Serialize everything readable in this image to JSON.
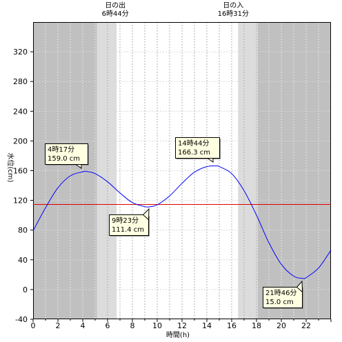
{
  "chart_data": {
    "type": "line",
    "xlabel": "時間(h)",
    "ylabel": "水位(cm)",
    "xlim": [
      0,
      24
    ],
    "ylim": [
      -40,
      360
    ],
    "x_ticks": [
      0,
      2,
      4,
      6,
      8,
      10,
      12,
      14,
      16,
      18,
      20,
      22
    ],
    "y_ticks": [
      -40,
      0,
      40,
      80,
      120,
      160,
      200,
      240,
      280,
      320
    ],
    "reference_line": {
      "value": 115,
      "color": "#dd0000"
    },
    "sunrise": {
      "label": "日の出",
      "time": "6時44分",
      "hour": 6.733
    },
    "sunset": {
      "label": "日の入",
      "time": "16時31分",
      "hour": 16.517
    },
    "twilight": {
      "morning_start": 5.15,
      "evening_end": 18.1
    },
    "series": [
      {
        "color": "#0000ff",
        "x": [
          0,
          1,
          2,
          3,
          4,
          4.283,
          5,
          6,
          7,
          8,
          9,
          9.383,
          10,
          11,
          12,
          13,
          14,
          14.733,
          15,
          16,
          17,
          18,
          19,
          20,
          21,
          21.767,
          22,
          23,
          24
        ],
        "y": [
          79,
          110,
          137,
          153,
          158.5,
          159.0,
          156,
          145,
          130,
          117,
          111.6,
          111.4,
          114,
          126,
          143,
          158,
          165.5,
          166.3,
          165.5,
          156,
          133,
          100,
          63,
          34,
          18,
          15.0,
          16,
          29,
          53
        ]
      }
    ],
    "annotations": [
      {
        "time": "4時17分",
        "value": "159.0 cm",
        "x": 4.283,
        "y": 159.0
      },
      {
        "time": "9時23分",
        "value": "111.4 cm",
        "x": 9.383,
        "y": 111.4
      },
      {
        "time": "14時44分",
        "value": "166.3 cm",
        "x": 14.733,
        "y": 166.3
      },
      {
        "time": "21時46分",
        "value": "15.0 cm",
        "x": 21.767,
        "y": 15.0
      }
    ]
  }
}
